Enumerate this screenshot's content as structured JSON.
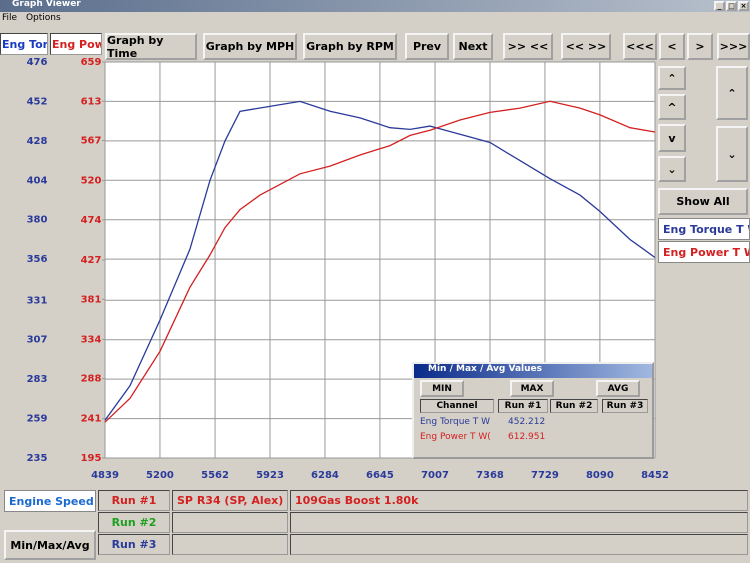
{
  "window": {
    "title": "Graph Viewer",
    "menu": [
      "File",
      "Options"
    ]
  },
  "toolbar": {
    "axis_headers": [
      "Eng Torq",
      "Eng Powe"
    ],
    "buttons": [
      "Graph by Time",
      "Graph by MPH",
      "Graph by RPM",
      "Prev",
      "Next",
      ">> <<",
      "<< >>",
      "<<<",
      "<",
      ">",
      ">>>"
    ]
  },
  "side": {
    "show_all": "Show All"
  },
  "chart_data": {
    "type": "line",
    "x": [
      4839,
      5003,
      5200,
      5397,
      5529,
      5627,
      5726,
      5857,
      6120,
      6317,
      6514,
      6711,
      6843,
      6974,
      7171,
      7368,
      7565,
      7762,
      7959,
      8091,
      8288,
      8452
    ],
    "xlim": [
      4839,
      8452
    ],
    "xticks": [
      4839,
      5200,
      5562,
      5923,
      6284,
      6645,
      7007,
      7368,
      7729,
      8090,
      8452
    ],
    "ylim": [
      235,
      476
    ],
    "yticks": [
      235,
      259,
      283,
      307,
      331,
      356,
      380,
      404,
      428,
      452,
      476
    ],
    "y2lim": [
      195,
      659
    ],
    "y2ticks": [
      195,
      241,
      288,
      334,
      381,
      427,
      474,
      520,
      567,
      613,
      659
    ],
    "grid": true,
    "series": [
      {
        "name": "Eng Torque T W",
        "color": "#2a3a9a",
        "values": [
          258,
          279,
          319,
          362,
          404,
          428,
          446,
          448,
          452,
          446,
          442,
          436,
          435,
          437,
          432,
          427,
          416,
          405,
          395,
          385,
          368,
          357
        ]
      },
      {
        "name": "Eng Power T WC",
        "color": "#d42020",
        "axis": "y2",
        "values": [
          237,
          265,
          320,
          395,
          433,
          465,
          486,
          503,
          528,
          537,
          550,
          561,
          573,
          579,
          591,
          600,
          605,
          613,
          605,
          597,
          582,
          577
        ]
      }
    ]
  },
  "dialog": {
    "title": "Min / Max / Avg Values",
    "buttons": [
      "MIN",
      "MAX",
      "AVG"
    ],
    "headers": [
      "Channel",
      "Run #1",
      "Run #2",
      "Run #3"
    ],
    "rows": [
      [
        "Eng Torque T W",
        "452.212"
      ],
      [
        "Eng Power T W(",
        "612.951"
      ]
    ]
  },
  "footer": {
    "channel": "Engine Speed (R",
    "button": "Min/Max/Avg",
    "runs": [
      {
        "label": "Run #1",
        "color": "#d42020",
        "vehicle": "SP R34 (SP, Alex)",
        "note": "109Gas Boost 1.80k"
      },
      {
        "label": "Run #2",
        "color": "#20a020"
      },
      {
        "label": "Run #3",
        "color": "#2a3a9a"
      }
    ]
  }
}
